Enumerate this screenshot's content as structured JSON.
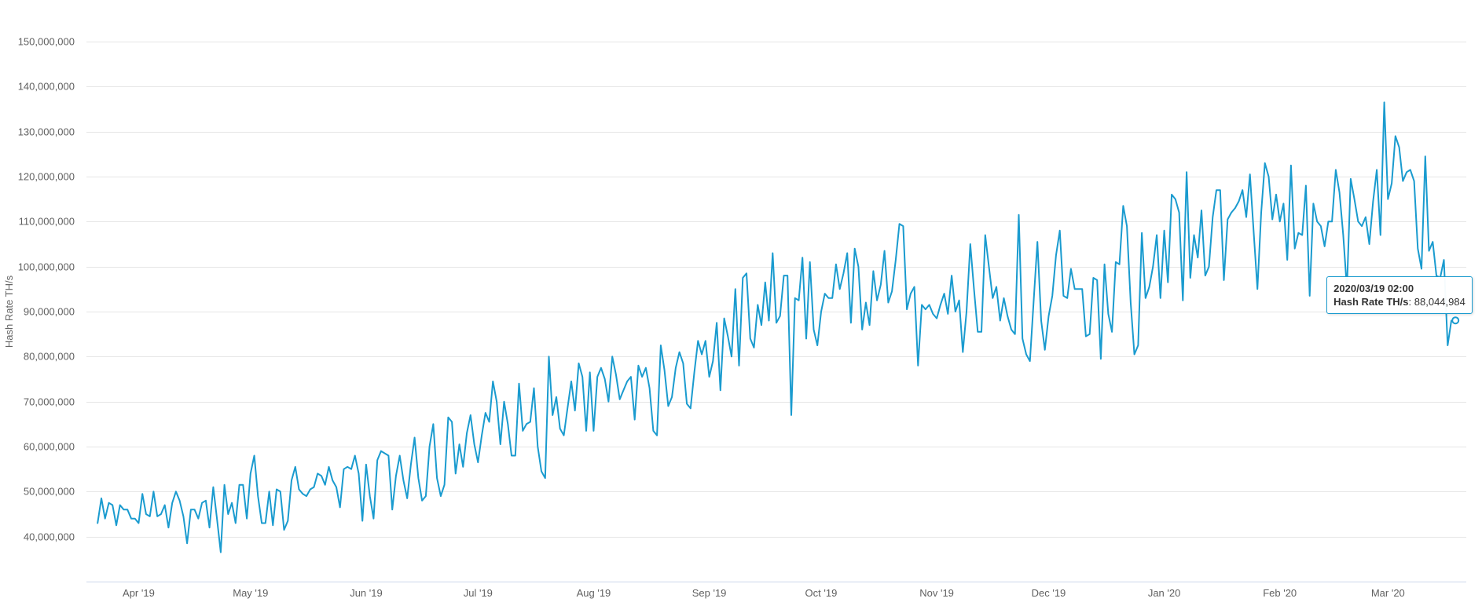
{
  "colors": {
    "series": "#1a9bcf",
    "grid": "#e6e6e6",
    "axis": "#ccd6eb",
    "label": "#606060"
  },
  "chart_data": {
    "type": "line",
    "title": "",
    "xlabel": "",
    "ylabel": "Hash Rate TH/s",
    "grid": true,
    "legend": "none",
    "ylim": [
      30000000,
      150000000
    ],
    "xlim": [
      "2019-03-18",
      "2020-03-22"
    ],
    "y_ticks": [
      "40,000,000",
      "50,000,000",
      "60,000,000",
      "70,000,000",
      "80,000,000",
      "90,000,000",
      "100,000,000",
      "110,000,000",
      "120,000,000",
      "130,000,000",
      "140,000,000",
      "150,000,000"
    ],
    "x_ticks": [
      {
        "date": "2019-04-01",
        "label": "Apr '19"
      },
      {
        "date": "2019-05-01",
        "label": "May '19"
      },
      {
        "date": "2019-06-01",
        "label": "Jun '19"
      },
      {
        "date": "2019-07-01",
        "label": "Jul '19"
      },
      {
        "date": "2019-08-01",
        "label": "Aug '19"
      },
      {
        "date": "2019-09-01",
        "label": "Sep '19"
      },
      {
        "date": "2019-10-01",
        "label": "Oct '19"
      },
      {
        "date": "2019-11-01",
        "label": "Nov '19"
      },
      {
        "date": "2019-12-01",
        "label": "Dec '19"
      },
      {
        "date": "2020-01-01",
        "label": "Jan '20"
      },
      {
        "date": "2020-02-01",
        "label": "Feb '20"
      },
      {
        "date": "2020-03-01",
        "label": "Mar '20"
      }
    ],
    "series": [
      {
        "start": "2019-03-21",
        "values": [
          43,
          48.5,
          44,
          47.5,
          47,
          42.5,
          47,
          46,
          46,
          44,
          44,
          43,
          49.5,
          45,
          44.5,
          50,
          44.5,
          45,
          47,
          42,
          47.5,
          50,
          48,
          44.5,
          38.5,
          46,
          46,
          44,
          47.5,
          48,
          42,
          51,
          44,
          36.5,
          51.5,
          45,
          47.5,
          43,
          51.5,
          51.5,
          44,
          54,
          58,
          49,
          43,
          43,
          50,
          42.5,
          50.5,
          50,
          41.5,
          43.5,
          52.5,
          55.5,
          50.5,
          49.5,
          49,
          50.5,
          51,
          54,
          53.5,
          51.5,
          55.5,
          52.5,
          51,
          46.5,
          55,
          55.5,
          55,
          58,
          54,
          43.5,
          56,
          49,
          44,
          57,
          59,
          58.5,
          58,
          46,
          53.5,
          58,
          52.5,
          48.5,
          56,
          62,
          53,
          48,
          49,
          60,
          65,
          53,
          49,
          51.5,
          66.5,
          65.5,
          54,
          60.5,
          55.5,
          63,
          67,
          60.5,
          56.5,
          62.5,
          67.5,
          65.5,
          74.5,
          70,
          60.5,
          70,
          65,
          58,
          58,
          74,
          63.5,
          65,
          65.5,
          73,
          60,
          54.5,
          53,
          80,
          67,
          71,
          64,
          62.5,
          68.5,
          74.5,
          68,
          78.5,
          75.5,
          63.5,
          76.5,
          63.5,
          75.5,
          77.5,
          75,
          70,
          80,
          76,
          70.5,
          72.5,
          74.5,
          75.5,
          66,
          78,
          75.5,
          77.5,
          73,
          63.5,
          62.5,
          82.5,
          77,
          69,
          71,
          77.5,
          81,
          78.5,
          69.5,
          68.5,
          76.5,
          83.5,
          80.5,
          83.5,
          75.5,
          79,
          87.5,
          72.5,
          88.5,
          84.5,
          80,
          95,
          78,
          97.5,
          98.5,
          84,
          82,
          91.5,
          87,
          96.5,
          88,
          103,
          87.5,
          89,
          98,
          98,
          67,
          93,
          92.5,
          102,
          84,
          101,
          86,
          82.5,
          90,
          94,
          93,
          93,
          100.5,
          95,
          98.5,
          103,
          87.5,
          104,
          100,
          86,
          92,
          87,
          99,
          92.5,
          96,
          103.5,
          92,
          94.5,
          101.5,
          109.5,
          109,
          90.5,
          94,
          95.5,
          78,
          91.5,
          90.5,
          91.5,
          89.5,
          88.5,
          91.5,
          94,
          89.5,
          98,
          90,
          92.5,
          81,
          90,
          105,
          95,
          85.5,
          85.5,
          107,
          100,
          93,
          95.5,
          88,
          93,
          89,
          86,
          85,
          111.5,
          84,
          80.5,
          79,
          92.5,
          105.5,
          88,
          81.5,
          89,
          93.5,
          102.5,
          108,
          93.5,
          93,
          99.5,
          95,
          95,
          95,
          84.5,
          85,
          97.5,
          97,
          79.5,
          100.5,
          89.5,
          85.5,
          101,
          100.5,
          113.5,
          109,
          92,
          80.5,
          82.5,
          107.5,
          93,
          95.5,
          100,
          107,
          93,
          108,
          96.5,
          116,
          115,
          112,
          92.5,
          121,
          97.5,
          107,
          102,
          112.5,
          98,
          100,
          111,
          117,
          117,
          97,
          110.5,
          112,
          113,
          114.5,
          117,
          111,
          120.5,
          107.5,
          95,
          112,
          123,
          120,
          110.5,
          116,
          110,
          114,
          101.5,
          122.5,
          104,
          107.5,
          107,
          118,
          93.5,
          114,
          110,
          109,
          104.5,
          110,
          110,
          121.5,
          116.5,
          107,
          95,
          119.5,
          115,
          110,
          109,
          111,
          105,
          114.5,
          121.5,
          107,
          136.5,
          115,
          118.5,
          129,
          126.5,
          119,
          121,
          121.5,
          119,
          104,
          99.5,
          124.5,
          103.5,
          105.5,
          98,
          97.5,
          101.5,
          82.5,
          88
        ]
      }
    ]
  },
  "tooltip": {
    "date": "2020-03-19",
    "date_label": "2020/03/19 02:00",
    "series_name": "Hash Rate TH/s",
    "value_label": "88,044,984"
  }
}
